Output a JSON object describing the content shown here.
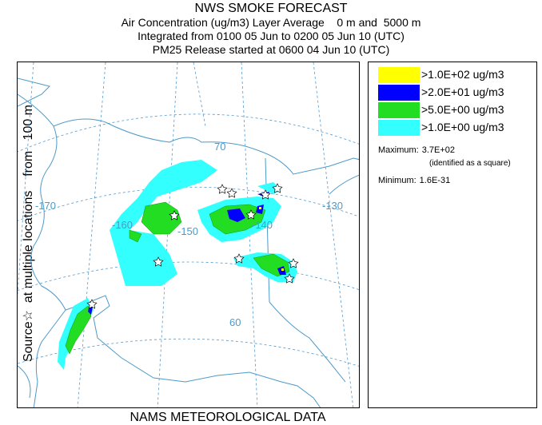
{
  "header": {
    "title": "NWS SMOKE FORECAST",
    "line2": "Air Concentration (ug/m3) Layer Average    0 m and  5000 m",
    "line3": "Integrated from 0100 05 Jun to 0200 05 Jun 10 (UTC)",
    "line4": "PM25 Release started at 0600 04 Jun 10 (UTC)"
  },
  "side_label": "Source☆  at multiple locations    from   100 m",
  "footer": "NAMS METEOROLOGICAL DATA",
  "map": {
    "longitude_labels": [
      "-170",
      "-160",
      "-150",
      "-140",
      "-130"
    ],
    "latitude_labels": [
      "70",
      "60"
    ],
    "colors": {
      "grid": "#5599cc",
      "coast": "#4d9ac8"
    }
  },
  "legend": {
    "items": [
      {
        "label": ">1.0E+02 ug/m3",
        "color": "#ffff00"
      },
      {
        "label": ">2.0E+01 ug/m3",
        "color": "#0000ff"
      },
      {
        "label": ">5.0E+00 ug/m3",
        "color": "#22dd22"
      },
      {
        "label": ">1.0E+00 ug/m3",
        "color": "#33ffff"
      }
    ],
    "maximum_label": "Maximum:",
    "maximum_value": "3.7E+02",
    "maximum_note": "(identified as a square)",
    "minimum_label": "Minimum:",
    "minimum_value": "1.6E-31"
  }
}
